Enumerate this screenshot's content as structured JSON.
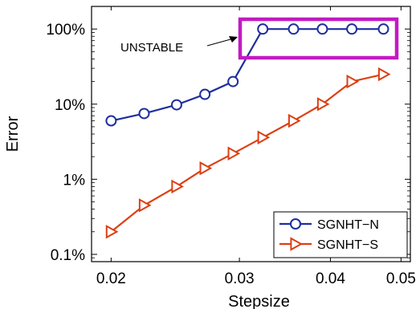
{
  "chart_data": {
    "type": "line",
    "xlabel": "Stepsize",
    "ylabel": "Error",
    "x_scale": "log",
    "y_scale": "log",
    "xlim": [
      0.0188,
      0.0515
    ],
    "ylim": [
      0.08,
      200
    ],
    "x_ticks": [
      {
        "value": 0.02,
        "label": "0.02"
      },
      {
        "value": 0.03,
        "label": "0.03"
      },
      {
        "value": 0.04,
        "label": "0.04"
      },
      {
        "value": 0.05,
        "label": "0.05"
      }
    ],
    "y_ticks": [
      {
        "value": 0.1,
        "label": "0.1%"
      },
      {
        "value": 1,
        "label": "1%"
      },
      {
        "value": 10,
        "label": "10%"
      },
      {
        "value": 100,
        "label": "100%"
      }
    ],
    "grid": false,
    "legend_position": "bottom-right",
    "series": [
      {
        "name": "SGNHT−N",
        "color": "#1f2f9e",
        "marker": "circle",
        "x": [
          0.02,
          0.0222,
          0.0246,
          0.0269,
          0.0294,
          0.0323,
          0.0356,
          0.039,
          0.0428,
          0.0473
        ],
        "y": [
          6,
          7.5,
          9.8,
          13.5,
          20,
          100,
          100,
          100,
          100,
          100
        ]
      },
      {
        "name": "SGNHT−S",
        "color": "#dd3f12",
        "marker": "triangle-right",
        "x": [
          0.02,
          0.0222,
          0.0246,
          0.0269,
          0.0294,
          0.0323,
          0.0356,
          0.039,
          0.0428,
          0.0473
        ],
        "y": [
          0.2,
          0.45,
          0.8,
          1.4,
          2.2,
          3.6,
          6,
          10,
          20,
          25
        ]
      }
    ],
    "annotations": [
      {
        "text": "UNSTABLE",
        "box_color": "#c21ac2",
        "arrow": true
      }
    ]
  }
}
